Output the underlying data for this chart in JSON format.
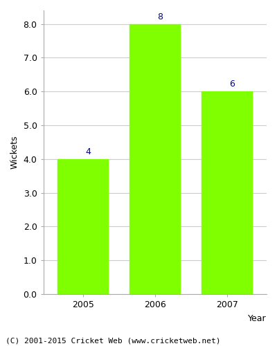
{
  "years": [
    "2005",
    "2006",
    "2007"
  ],
  "values": [
    4,
    8,
    6
  ],
  "bar_color": "#7fff00",
  "bar_edgecolor": "#7fff00",
  "label_color": "#00008b",
  "ylabel": "Wickets",
  "xlabel": "Year",
  "ylim": [
    0,
    8.4
  ],
  "yticks": [
    0.0,
    1.0,
    2.0,
    3.0,
    4.0,
    5.0,
    6.0,
    7.0,
    8.0
  ],
  "footnote": "(C) 2001-2015 Cricket Web (www.cricketweb.net)",
  "background_color": "#ffffff",
  "grid_color": "#cccccc",
  "bar_width": 0.7,
  "label_fontsize": 9,
  "tick_fontsize": 9,
  "ylabel_fontsize": 9,
  "xlabel_fontsize": 9,
  "footnote_fontsize": 8
}
